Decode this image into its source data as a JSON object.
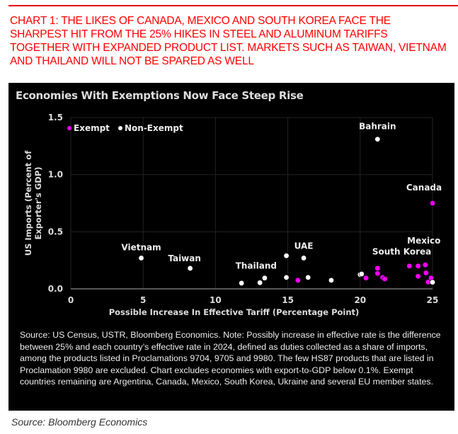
{
  "headline": "CHART 1: THE LIKES OF CANADA, MEXICO AND SOUTH KOREA FACE THE SHARPEST HIT FROM THE 25% HIKES IN STEEL AND ALUMINUM TARIFFS TOGETHER WITH EXPANDED PRODUCT LIST. MARKETS SUCH AS TAIWAN, VIETNAM AND THAILAND WILL NOT BE SPARED AS WELL",
  "note": "Source: US Census, USTR, Bloomberg Economics. Note: Possibly increase in effective rate is the difference between 25% and each country’s effective rate in 2024, defined as duties collected as a share of imports, among the products listed in Proclamations 9704, 9705 and 9980. The few HS87 products that are listed in Proclamation 9980 are excluded. Chart excludes economies with export-to-GDP below 0.1%. Exempt countries remaining are Argentina, Canada, Mexico, South Korea, Ukraine and several EU member states.",
  "source": "Source: Bloomberg Economics",
  "chart_data": {
    "type": "scatter",
    "title": "Economies With Exemptions Now Face Steep Rise",
    "xlabel": "Possible Increase In Effective Tariff (Percentage Point)",
    "ylabel": "US Imports (Percent of Exporter's GDP)",
    "xlim": [
      0,
      25
    ],
    "ylim": [
      0,
      1.5
    ],
    "xticks": [
      "0",
      "5",
      "10",
      "15",
      "20",
      "25"
    ],
    "yticks": [
      "0.0",
      "0.5",
      "1.0",
      "1.5"
    ],
    "legend": "top-left",
    "series": [
      {
        "name": "Exempt",
        "color": "#ff00ff",
        "points": [
          [
            25,
            0.75
          ],
          [
            15.7,
            0.075
          ],
          [
            20.4,
            0.095
          ],
          [
            21.2,
            0.18
          ],
          [
            21.2,
            0.135
          ],
          [
            21.55,
            0.1
          ],
          [
            21.7,
            0.087
          ],
          [
            23.4,
            0.2
          ],
          [
            24.0,
            0.2
          ],
          [
            24.5,
            0.21
          ],
          [
            24.0,
            0.11
          ],
          [
            24.55,
            0.14
          ],
          [
            24.7,
            0.06
          ],
          [
            24.9,
            0.095
          ]
        ]
      },
      {
        "name": "Non-Exempt",
        "color": "#ffffff",
        "points": [
          [
            21.2,
            1.31
          ],
          [
            4.87,
            0.27
          ],
          [
            8.25,
            0.18
          ],
          [
            14.9,
            0.29
          ],
          [
            16.1,
            0.27
          ],
          [
            11.8,
            0.05
          ],
          [
            13.07,
            0.054
          ],
          [
            13.4,
            0.095
          ],
          [
            14.9,
            0.1
          ],
          [
            16.4,
            0.1
          ],
          [
            18.0,
            0.075
          ],
          [
            20.0,
            0.125
          ],
          [
            20.1,
            0.13
          ],
          [
            25,
            0.058
          ]
        ]
      }
    ],
    "annotations": [
      {
        "text": "Bahrain",
        "x": 21.2,
        "y": 1.31
      },
      {
        "text": "Canada",
        "x": 25,
        "y": 0.75
      },
      {
        "text": "Vietnam",
        "x": 4.87,
        "y": 0.27
      },
      {
        "text": "Taiwan",
        "x": 8.25,
        "y": 0.18
      },
      {
        "text": "UAE",
        "x": 16.1,
        "y": 0.27
      },
      {
        "text": "Thailand",
        "x": 13.4,
        "y": 0.095
      },
      {
        "text": "Mexico",
        "x": 24.5,
        "y": 0.21
      },
      {
        "text": "South Korea",
        "x": 24.0,
        "y": 0.2
      }
    ]
  }
}
